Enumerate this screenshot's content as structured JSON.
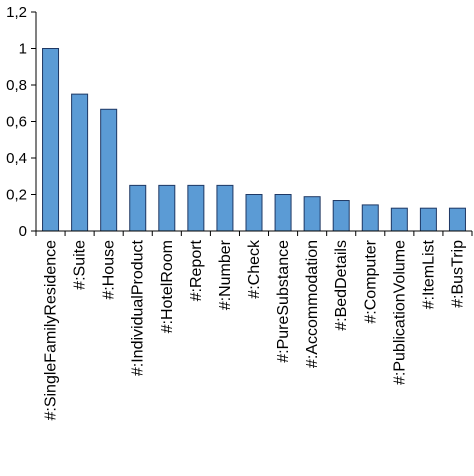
{
  "chart_data": {
    "type": "bar",
    "title": "",
    "xlabel": "",
    "ylabel": "",
    "ylim": [
      0,
      1.2
    ],
    "y_ticks": [
      "0",
      "0,2",
      "0,4",
      "0,6",
      "0,8",
      "1",
      "1,2"
    ],
    "y_tick_values": [
      0,
      0.2,
      0.4,
      0.6,
      0.8,
      1.0,
      1.2
    ],
    "grid": false,
    "legend": "none",
    "categories": [
      "#:SingleFamilyResidence",
      "#:Suite",
      "#:House",
      "#:IndividualProduct",
      "#:HotelRoom",
      "#:Report",
      "#:Number",
      "#:Check",
      "#:PureSubstance",
      "#:Accommodation",
      "#:BedDetails",
      "#:Computer",
      "#:PublicationVolume",
      "#:ItemList",
      "#:BusTrip"
    ],
    "values": [
      1.0,
      0.75,
      0.667,
      0.25,
      0.25,
      0.25,
      0.25,
      0.2,
      0.2,
      0.188,
      0.167,
      0.143,
      0.125,
      0.125,
      0.125
    ],
    "colors": {
      "bar_fill": "#5B9BD5",
      "bar_stroke": "#1F3864",
      "axis": "#000000"
    }
  }
}
